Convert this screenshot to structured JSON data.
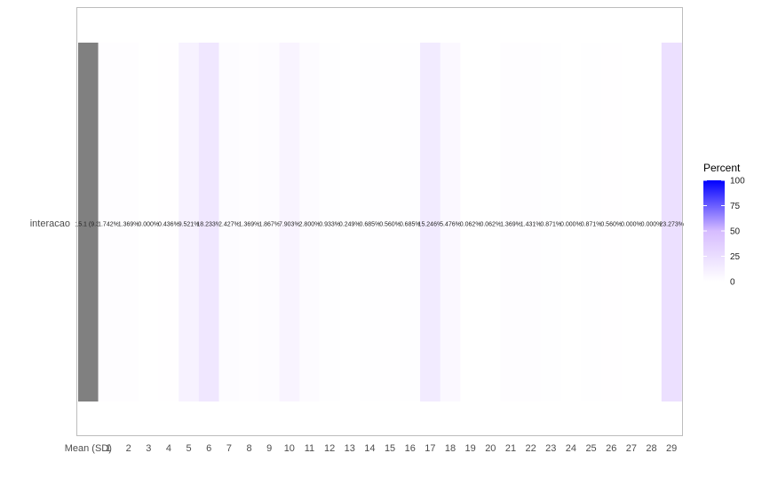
{
  "chart_data": {
    "type": "heatmap",
    "row_label": "interacao",
    "first_column": {
      "tick": "Mean (SD)",
      "label": "15.1 (9.3)",
      "color": "#808080"
    },
    "categories": [
      "1",
      "2",
      "3",
      "4",
      "5",
      "6",
      "7",
      "8",
      "9",
      "10",
      "11",
      "12",
      "13",
      "14",
      "15",
      "16",
      "17",
      "18",
      "19",
      "20",
      "21",
      "22",
      "23",
      "24",
      "25",
      "26",
      "27",
      "28",
      "29"
    ],
    "values": [
      1.742,
      1.369,
      0.0,
      0.436,
      9.521,
      18.233,
      2.427,
      1.369,
      1.867,
      7.903,
      2.8,
      0.933,
      0.249,
      0.685,
      0.56,
      0.685,
      15.246,
      5.476,
      0.062,
      0.062,
      1.369,
      1.431,
      0.871,
      0.0,
      0.871,
      0.56,
      0.0,
      0.0,
      23.273
    ],
    "labels": [
      "1.742%",
      "1.369%",
      "0.000%",
      "0.436%",
      "9.521%",
      "18.233%",
      "2.427%",
      "1.369%",
      "1.867%",
      "7.903%",
      "2.800%",
      "0.933%",
      "0.249%",
      "0.685%",
      "0.560%",
      "0.685%",
      "15.246%",
      "5.476%",
      "0.062%",
      "0.062%",
      "1.369%",
      "1.431%",
      "0.871%",
      "0.000%",
      "0.871%",
      "0.560%",
      "0.000%",
      "0.000%",
      "23.273%"
    ],
    "legend": {
      "title": "Percent",
      "ticks": [
        0,
        25,
        50,
        75,
        100
      ],
      "low_color": "#ffffff",
      "mid_color": "#d6bcff",
      "high_color": "#0000ff"
    },
    "color_scale_limits": [
      0,
      100
    ]
  }
}
